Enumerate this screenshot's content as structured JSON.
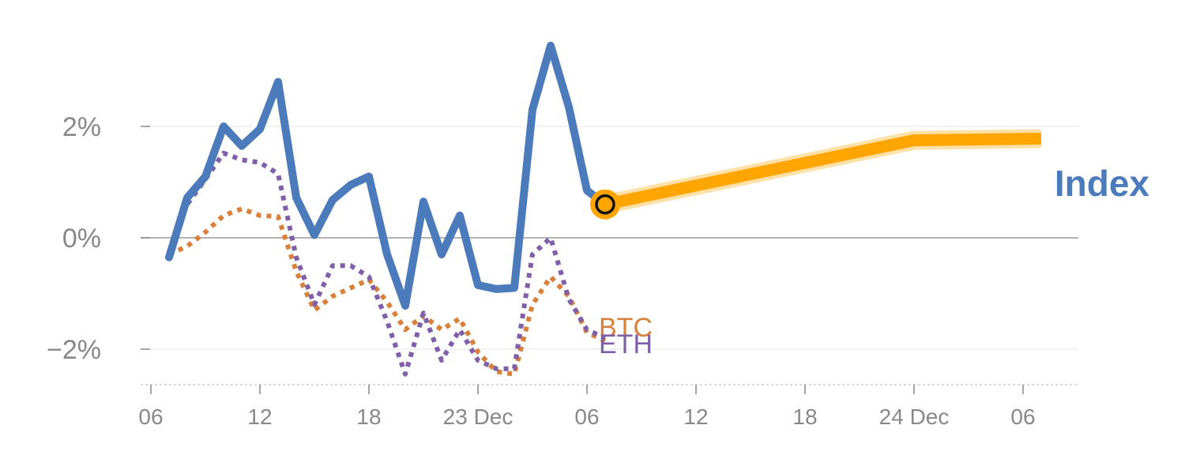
{
  "chart_data": {
    "type": "line",
    "title": "",
    "xlabel": "",
    "ylabel": "",
    "ylim": [
      -2.6,
      3.5
    ],
    "grid": true,
    "y_ticks": [
      {
        "value": 2,
        "label": "2%"
      },
      {
        "value": 0,
        "label": "0%"
      },
      {
        "value": -2,
        "label": "−2%"
      }
    ],
    "x_ticks": [
      {
        "label": "06"
      },
      {
        "label": "12"
      },
      {
        "label": "18"
      },
      {
        "label": "23 Dec"
      },
      {
        "label": "06"
      },
      {
        "label": "12"
      },
      {
        "label": "18"
      },
      {
        "label": "24 Dec"
      },
      {
        "label": "06"
      }
    ],
    "series": [
      {
        "name": "Index",
        "color": "#4c7bbc",
        "style": "solid",
        "x": [
          "2023-12-22 07:00",
          "2023-12-22 08:00",
          "2023-12-22 09:00",
          "2023-12-22 10:00",
          "2023-12-22 11:00",
          "2023-12-22 12:00",
          "2023-12-22 13:00",
          "2023-12-22 14:00",
          "2023-12-22 15:00",
          "2023-12-22 16:00",
          "2023-12-22 17:00",
          "2023-12-22 18:00",
          "2023-12-22 19:00",
          "2023-12-22 20:00",
          "2023-12-22 21:00",
          "2023-12-22 22:00",
          "2023-12-22 23:00",
          "2023-12-23 00:00",
          "2023-12-23 01:00",
          "2023-12-23 02:00",
          "2023-12-23 03:00",
          "2023-12-23 04:00",
          "2023-12-23 05:00",
          "2023-12-23 06:00",
          "2023-12-23 07:00"
        ],
        "values": [
          -0.35,
          0.72,
          1.1,
          2.0,
          1.65,
          1.95,
          2.8,
          0.72,
          0.05,
          0.68,
          0.95,
          1.1,
          -0.3,
          -1.22,
          0.65,
          -0.3,
          0.4,
          -0.85,
          -0.92,
          -0.9,
          2.3,
          3.45,
          2.35,
          0.85,
          0.6
        ]
      },
      {
        "name": "BTC",
        "color": "#d9803a",
        "style": "dotted",
        "x": [
          "2023-12-22 07:00",
          "2023-12-22 08:00",
          "2023-12-22 09:00",
          "2023-12-22 10:00",
          "2023-12-22 11:00",
          "2023-12-22 12:00",
          "2023-12-22 13:00",
          "2023-12-22 14:00",
          "2023-12-22 15:00",
          "2023-12-22 16:00",
          "2023-12-22 17:00",
          "2023-12-22 18:00",
          "2023-12-22 19:00",
          "2023-12-22 20:00",
          "2023-12-22 21:00",
          "2023-12-22 22:00",
          "2023-12-22 23:00",
          "2023-12-23 00:00",
          "2023-12-23 01:00",
          "2023-12-23 02:00",
          "2023-12-23 03:00",
          "2023-12-23 04:00",
          "2023-12-23 05:00",
          "2023-12-23 06:00",
          "2023-12-23 07:00"
        ],
        "values": [
          -0.3,
          -0.15,
          0.1,
          0.4,
          0.52,
          0.4,
          0.38,
          -0.6,
          -1.3,
          -1.05,
          -0.9,
          -0.75,
          -1.15,
          -1.65,
          -1.4,
          -1.65,
          -1.45,
          -2.05,
          -2.4,
          -2.45,
          -1.2,
          -0.7,
          -1.05,
          -1.7,
          -1.85
        ]
      },
      {
        "name": "ETH",
        "color": "#7f5fa8",
        "style": "dotted",
        "x": [
          "2023-12-22 07:00",
          "2023-12-22 08:00",
          "2023-12-22 09:00",
          "2023-12-22 10:00",
          "2023-12-22 11:00",
          "2023-12-22 12:00",
          "2023-12-22 13:00",
          "2023-12-22 14:00",
          "2023-12-22 15:00",
          "2023-12-22 16:00",
          "2023-12-22 17:00",
          "2023-12-22 18:00",
          "2023-12-22 19:00",
          "2023-12-22 20:00",
          "2023-12-22 21:00",
          "2023-12-22 22:00",
          "2023-12-22 23:00",
          "2023-12-23 00:00",
          "2023-12-23 01:00",
          "2023-12-23 02:00",
          "2023-12-23 03:00",
          "2023-12-23 04:00",
          "2023-12-23 05:00",
          "2023-12-23 06:00",
          "2023-12-23 07:00"
        ],
        "values": [
          -0.25,
          0.6,
          1.05,
          1.52,
          1.4,
          1.35,
          1.15,
          -0.35,
          -1.2,
          -0.5,
          -0.5,
          -0.7,
          -1.5,
          -2.45,
          -1.35,
          -2.2,
          -1.65,
          -2.2,
          -2.35,
          -2.35,
          -0.3,
          0.0,
          -1.1,
          -1.65,
          -1.8
        ]
      },
      {
        "name": "",
        "color": "#ffa500",
        "style": "thick",
        "x": [
          "2023-12-23 07:00",
          "2023-12-24 00:00",
          "2023-12-24 07:00"
        ],
        "values": [
          0.6,
          1.75,
          1.78
        ]
      }
    ],
    "marker": {
      "x": "2023-12-23 07:00",
      "value": 0.6,
      "fill": "#ffa500",
      "stroke": "#111111"
    },
    "labels": [
      {
        "text": "Index",
        "color": "#4c7bbc"
      },
      {
        "text": "BTC",
        "color": "#d9803a"
      },
      {
        "text": "ETH",
        "color": "#7f5fa8"
      }
    ]
  }
}
